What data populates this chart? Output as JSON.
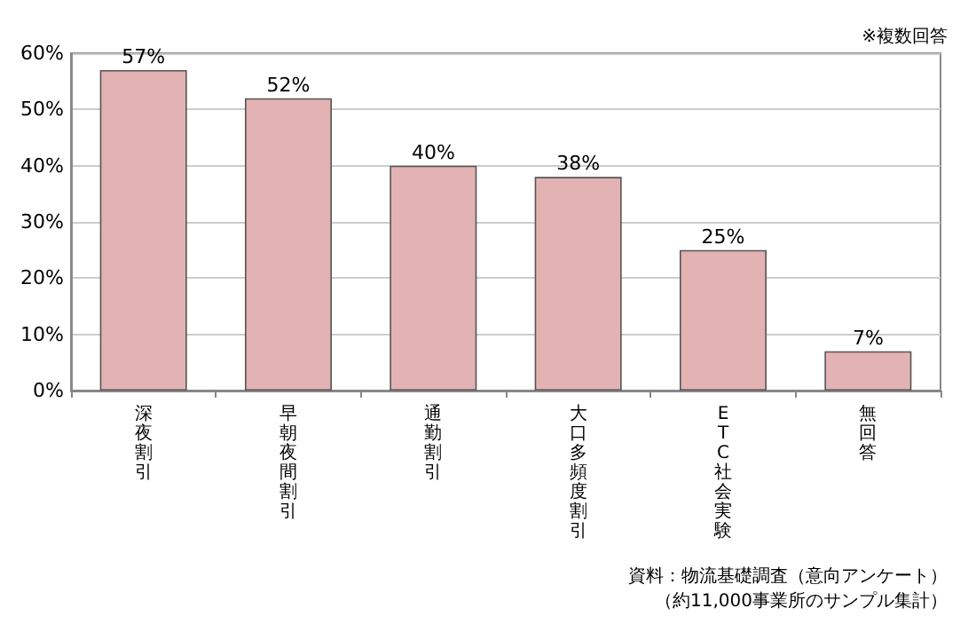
{
  "chart_data": {
    "type": "bar",
    "categories": [
      "深夜割引",
      "早朝夜間割引",
      "通勤割引",
      "大口多頻度割引",
      "ETC社会実験",
      "無回答"
    ],
    "values": [
      57,
      52,
      40,
      38,
      25,
      7
    ],
    "value_labels": [
      "57%",
      "52%",
      "40%",
      "38%",
      "25%",
      "7%"
    ],
    "color": "#e3b2b2",
    "ylim": [
      0,
      60
    ],
    "yticks": [
      {
        "value": 0,
        "label": "0%"
      },
      {
        "value": 10,
        "label": "10%"
      },
      {
        "value": 20,
        "label": "20%"
      },
      {
        "value": 30,
        "label": "30%"
      },
      {
        "value": 40,
        "label": "40%"
      },
      {
        "value": 50,
        "label": "50%"
      },
      {
        "value": 60,
        "label": "60%"
      }
    ],
    "grid": "y",
    "annotations": [
      "※複数回答",
      "資料：物流基礎調査（意向アンケート）",
      "（約11,000事業所のサンプル集計）"
    ]
  }
}
